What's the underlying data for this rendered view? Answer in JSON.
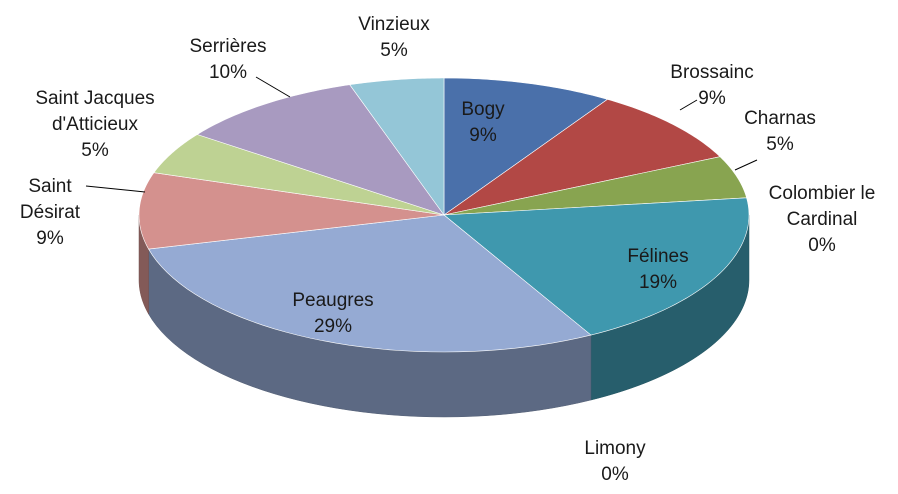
{
  "chart_data": {
    "type": "pie",
    "categories": [
      "Bogy",
      "Brossainc",
      "Charnas",
      "Colombier le Cardinal",
      "Félines",
      "Limony",
      "Peaugres",
      "Saint Désirat",
      "Saint Jacques d'Atticieux",
      "Serrières",
      "Vinzieux"
    ],
    "values": [
      9,
      9,
      5,
      0,
      19,
      0,
      29,
      9,
      5,
      10,
      5
    ],
    "value_labels": [
      "9%",
      "9%",
      "5%",
      "0%",
      "19%",
      "0%",
      "29%",
      "9%",
      "5%",
      "10%",
      "5%"
    ],
    "colors": [
      "#4a70aa",
      "#b24845",
      "#88a450",
      "#6e5595",
      "#3f98ae",
      "#e38b3b",
      "#95aad3",
      "#d4918e",
      "#bed293",
      "#a89ac0",
      "#94c6d7"
    ]
  }
}
